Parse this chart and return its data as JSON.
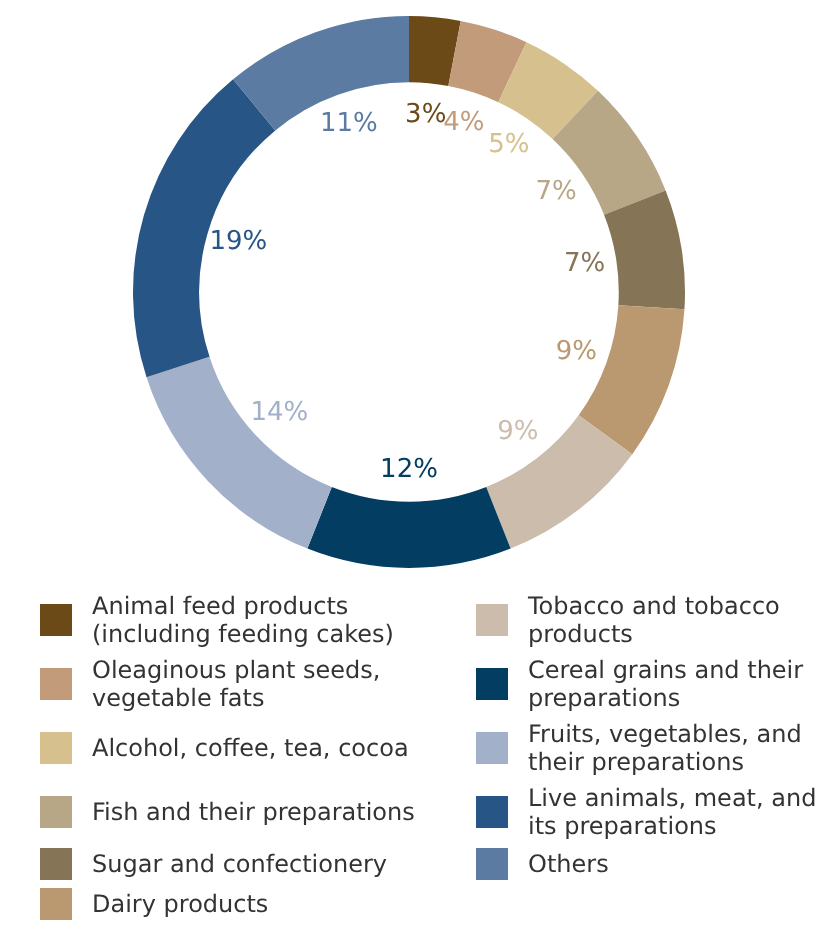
{
  "chart_data": {
    "type": "donut",
    "categories": [
      "Animal feed products (including feeding cakes)",
      "Oleaginous plant seeds, vegetable fats",
      "Alcohol, coffee, tea, cocoa",
      "Fish and their preparations",
      "Sugar and confectionery",
      "Dairy products",
      "Tobacco and tobacco products",
      "Cereal grains and their preparations",
      "Fruits, vegetables, and their preparations",
      "Live animals, meat, and its preparations",
      "Others"
    ],
    "values": [
      3,
      4,
      5,
      7,
      7,
      9,
      9,
      12,
      14,
      19,
      11
    ],
    "colors": [
      "#6b4a18",
      "#c29c7a",
      "#d6c18e",
      "#b8a786",
      "#857455",
      "#ba9870",
      "#cbbcac",
      "#033d62",
      "#a3b0ca",
      "#275586",
      "#5b7ba3"
    ],
    "value_labels": [
      "3%",
      "4%",
      "5%",
      "7%",
      "7%",
      "9%",
      "9%",
      "12%",
      "14%",
      "19%",
      "11%"
    ],
    "legend": "bottom"
  }
}
